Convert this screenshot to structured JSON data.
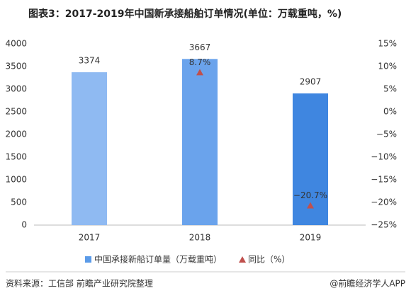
{
  "chart_data": {
    "type": "bar",
    "title": "图表3：2017-2019年中国新承接船舶订单情况(单位：万载重吨，%)",
    "categories": [
      "2017",
      "2018",
      "2019"
    ],
    "series": [
      {
        "name": "中国承接新船订单量（万载重吨）",
        "type": "bar",
        "color": "#5b9be8",
        "colors": [
          "#8fbaf2",
          "#6aa3ec",
          "#3f86e0"
        ],
        "values": [
          3374,
          3667,
          2907
        ]
      },
      {
        "name": "同比（%）",
        "type": "scatter",
        "axis": "y2",
        "color": "#c0504d",
        "values": [
          null,
          8.7,
          -20.7
        ],
        "value_labels": [
          null,
          "8.7%",
          "−20.7%"
        ]
      }
    ],
    "ylim": [
      0,
      4000
    ],
    "yticks": [
      0,
      500,
      1000,
      1500,
      2000,
      2500,
      3000,
      3500,
      4000
    ],
    "y2lim": [
      -25,
      15
    ],
    "y2ticks": [
      {
        "value": -25,
        "label": "−25%"
      },
      {
        "value": -20,
        "label": "−20%"
      },
      {
        "value": -15,
        "label": "−15%"
      },
      {
        "value": -10,
        "label": "−10%"
      },
      {
        "value": -5,
        "label": "−5%"
      },
      {
        "value": 0,
        "label": "0%"
      },
      {
        "value": 5,
        "label": "5%"
      },
      {
        "value": 10,
        "label": "10%"
      },
      {
        "value": 15,
        "label": "15%"
      }
    ],
    "grid": false,
    "source": "资料来源：工信部 前瞻产业研究院整理",
    "credit": "@前瞻经济学人APP"
  }
}
